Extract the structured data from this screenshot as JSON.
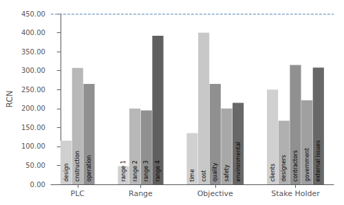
{
  "chart_data": {
    "type": "bar",
    "ylabel": "RCN",
    "groups": [
      {
        "label": "PLC",
        "categories": [
          "design",
          "cnstruction",
          "operation"
        ],
        "values": [
          115,
          307,
          265
        ],
        "colors": [
          "#d0d0d0",
          "#b8b8b8",
          "#909090"
        ]
      },
      {
        "label": "Range",
        "categories": [
          "range 1",
          "range 2",
          "range 3",
          "range 4"
        ],
        "values": [
          48,
          200,
          195,
          392
        ],
        "colors": [
          "#d0d0d0",
          "#b8b8b8",
          "#909090",
          "#606060"
        ]
      },
      {
        "label": "Objective",
        "categories": [
          "time",
          "cost",
          "quality",
          "safety",
          "environmental"
        ],
        "values": [
          135,
          400,
          265,
          200,
          215
        ],
        "colors": [
          "#d0d0d0",
          "#c8c8c8",
          "#909090",
          "#a8a8a8",
          "#686868"
        ]
      },
      {
        "label": "Stake Holder",
        "categories": [
          "clients",
          "designers",
          "contractors",
          "government",
          "external issues"
        ],
        "values": [
          250,
          168,
          315,
          222,
          308
        ],
        "colors": [
          "#d0d0d0",
          "#b0b0b0",
          "#909090",
          "#a0a0a0",
          "#686868"
        ]
      }
    ],
    "ylim": [
      0,
      450
    ],
    "yticks": [
      {
        "value": 0,
        "label": "0.00"
      },
      {
        "value": 50,
        "label": "50.00"
      },
      {
        "value": 100,
        "label": "100.00"
      },
      {
        "value": 150,
        "label": "150.00"
      },
      {
        "value": 200,
        "label": "200.00"
      },
      {
        "value": 250,
        "label": "250.00"
      },
      {
        "value": 300,
        "label": "300.00"
      },
      {
        "value": 350,
        "label": "350.00"
      },
      {
        "value": 400,
        "label": "400.00"
      },
      {
        "value": 450,
        "label": "450.00"
      }
    ],
    "grid": false,
    "hline": {
      "y": 450,
      "color": "#5588bb",
      "line_style": "dashed"
    }
  }
}
